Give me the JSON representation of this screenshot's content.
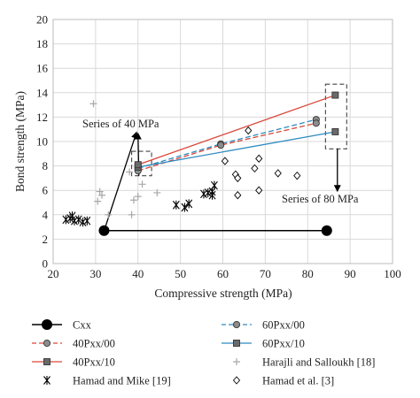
{
  "chart_data": {
    "type": "scatter",
    "xlabel": "Compressive strength (MPa)",
    "ylabel": "Bond strength (MPa)",
    "xlim": [
      20,
      100
    ],
    "ylim": [
      0,
      20
    ],
    "xticks": [
      20,
      30,
      40,
      50,
      60,
      70,
      80,
      90,
      100
    ],
    "yticks": [
      0,
      2,
      4,
      6,
      8,
      10,
      12,
      14,
      16,
      18,
      20
    ],
    "grid": true,
    "legend_position": "bottom",
    "series": [
      {
        "name": "Cxx",
        "kind": "line-marker",
        "marker": "circle-filled",
        "color": "#000000",
        "dash": "solid",
        "points": [
          [
            32,
            2.7
          ],
          [
            84.5,
            2.7
          ]
        ]
      },
      {
        "name": "60Pxx/00",
        "kind": "line-marker",
        "marker": "circle-gray",
        "color": "#2e8bc0",
        "dash": "dash",
        "points": [
          [
            40,
            7.8
          ],
          [
            59.5,
            9.8
          ],
          [
            82,
            11.8
          ]
        ]
      },
      {
        "name": "40Pxx/00",
        "kind": "line-marker",
        "marker": "circle-gray",
        "color": "#d9483b",
        "dash": "dash",
        "points": [
          [
            40,
            7.6
          ],
          [
            59.5,
            9.7
          ],
          [
            82,
            11.5
          ]
        ]
      },
      {
        "name": "60Pxx/10",
        "kind": "line-marker",
        "marker": "square-gray",
        "color": "#2e8bc0",
        "dash": "solid",
        "points": [
          [
            40,
            7.9
          ],
          [
            86.5,
            10.8
          ]
        ]
      },
      {
        "name": "40Pxx/10",
        "kind": "line-marker",
        "marker": "square-gray",
        "color": "#d9483b",
        "dash": "solid",
        "points": [
          [
            40,
            8.1
          ],
          [
            86.5,
            13.8
          ]
        ]
      },
      {
        "name": "Harajli and Salloukh [18]",
        "kind": "scatter",
        "marker": "plus",
        "color": "#a8a8a8",
        "points": [
          [
            29.5,
            13.1
          ],
          [
            31,
            5.9
          ],
          [
            31.5,
            5.6
          ],
          [
            30.5,
            5.1
          ],
          [
            33,
            4.0
          ],
          [
            38.5,
            4.0
          ],
          [
            39,
            5.2
          ],
          [
            40,
            5.5
          ],
          [
            38,
            7.5
          ],
          [
            41,
            6.5
          ],
          [
            44.5,
            5.8
          ]
        ]
      },
      {
        "name": "Hamad and Mike [19]",
        "kind": "scatter",
        "marker": "x",
        "color": "#000000",
        "points": [
          [
            23,
            3.6
          ],
          [
            24,
            3.7
          ],
          [
            24.5,
            3.9
          ],
          [
            25,
            3.5
          ],
          [
            26,
            3.6
          ],
          [
            27,
            3.4
          ],
          [
            28,
            3.5
          ],
          [
            49,
            4.8
          ],
          [
            51,
            4.6
          ],
          [
            52,
            4.9
          ],
          [
            55.5,
            5.7
          ],
          [
            56.5,
            5.8
          ],
          [
            57.5,
            5.6
          ],
          [
            58,
            6.4
          ],
          [
            57.5,
            5.9
          ]
        ]
      },
      {
        "name": "Hamad et al. [3]",
        "kind": "scatter",
        "marker": "diamond",
        "color": "#000000",
        "points": [
          [
            60.5,
            8.4
          ],
          [
            63,
            7.3
          ],
          [
            63.5,
            7.0
          ],
          [
            63.5,
            5.6
          ],
          [
            66,
            10.9
          ],
          [
            67.5,
            7.8
          ],
          [
            68.5,
            8.6
          ],
          [
            68.5,
            6.0
          ],
          [
            73,
            7.4
          ],
          [
            77.5,
            7.2
          ]
        ]
      }
    ],
    "annotations": [
      {
        "text": "Series of 40 MPa",
        "anchor_x": 40,
        "anchor_y": 11
      },
      {
        "text": "Series of 80 MPa",
        "anchor_x": 87,
        "anchor_y": 5
      }
    ]
  }
}
